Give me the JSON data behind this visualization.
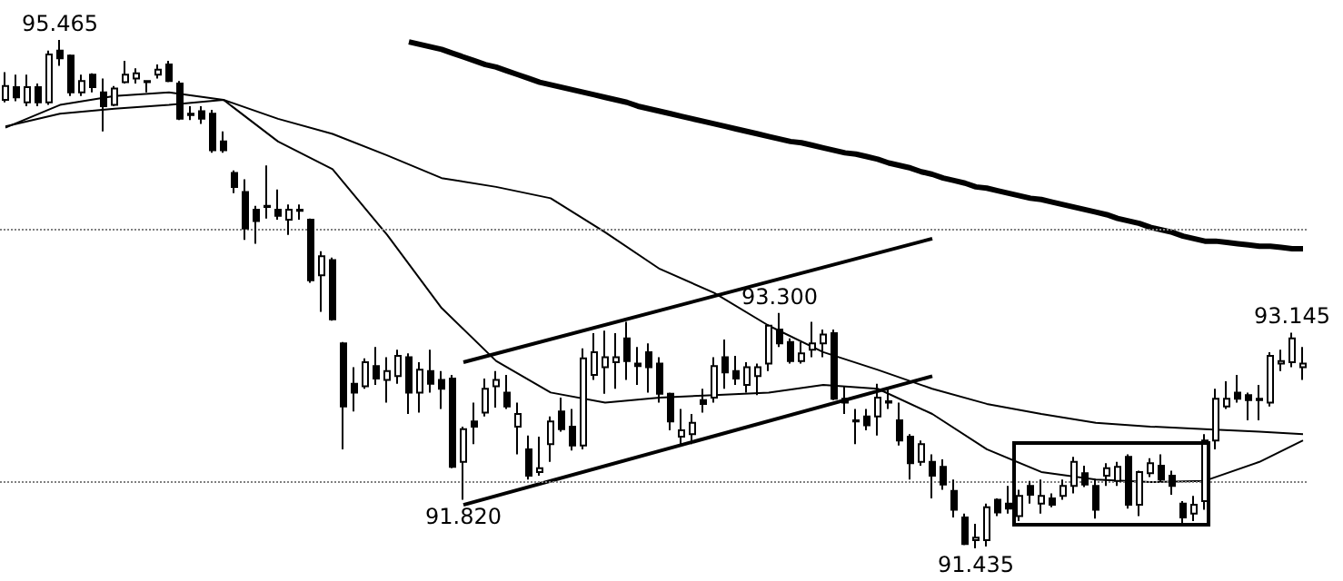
{
  "chart_data": {
    "type": "candlestick",
    "marker": "none",
    "line_style": "solid",
    "grid": false,
    "categories": [
      null,
      null,
      null,
      null,
      null,
      null,
      null,
      null,
      null,
      null,
      null,
      null,
      null,
      null,
      null,
      null,
      null,
      null,
      null,
      null,
      null,
      null,
      null,
      null,
      null,
      null,
      null,
      null,
      null,
      null,
      null,
      null,
      null,
      null,
      null,
      null,
      null,
      null,
      null,
      null,
      null,
      null,
      null,
      null,
      null,
      null,
      null,
      null,
      null,
      null,
      null,
      null,
      null,
      null,
      null,
      null,
      null,
      null,
      null,
      null,
      null,
      null,
      null,
      null,
      null,
      null,
      null,
      null,
      null,
      null,
      null,
      null,
      null,
      null,
      null,
      null,
      null,
      null,
      null,
      null,
      null,
      null,
      null,
      null,
      null,
      null,
      null,
      null,
      null,
      null,
      null,
      null,
      null,
      null,
      null,
      null,
      null,
      null,
      null,
      null,
      null,
      null,
      null,
      null,
      null,
      null,
      null,
      null,
      null,
      null,
      null,
      null,
      null,
      null,
      null,
      null,
      null,
      null,
      null,
      null
    ],
    "ref_lines": [
      {
        "axis": "y",
        "value": 93.97,
        "color": "#808080",
        "line_style": "dotted"
      },
      {
        "axis": "y",
        "value": 91.97,
        "color": "#808080",
        "line_style": "dotted"
      }
    ],
    "annotations": [
      {
        "text": "95.465",
        "y": 95.465
      },
      {
        "text": "93.300",
        "y": 93.3
      },
      {
        "text": "93.145",
        "y": 93.145
      },
      {
        "text": "91.820",
        "y": 91.82
      },
      {
        "text": "91.435",
        "y": 91.435
      }
    ],
    "series": [
      {
        "type": "candlestick",
        "color": "#000000",
        "ohlc": [
          [
            94.99,
            95.21,
            94.97,
            95.1
          ],
          [
            95.09,
            95.19,
            94.98,
            95.01
          ],
          [
            94.97,
            95.19,
            94.94,
            95.09
          ],
          [
            95.09,
            95.12,
            94.94,
            94.97
          ],
          [
            94.97,
            95.38,
            94.95,
            95.35
          ],
          [
            95.38,
            95.465,
            95.26,
            95.32
          ],
          [
            95.34,
            95.35,
            95.02,
            95.05
          ],
          [
            95.05,
            95.19,
            95.02,
            95.14
          ],
          [
            95.19,
            95.2,
            95.05,
            95.09
          ],
          [
            95.05,
            95.16,
            94.74,
            94.94
          ],
          [
            94.95,
            95.1,
            94.94,
            95.08
          ],
          [
            95.13,
            95.3,
            95.12,
            95.19
          ],
          [
            95.16,
            95.24,
            95.12,
            95.2
          ],
          [
            95.14,
            95.14,
            95.05,
            95.13
          ],
          [
            95.19,
            95.27,
            95.16,
            95.23
          ],
          [
            95.27,
            95.3,
            95.13,
            95.14
          ],
          [
            95.12,
            95.14,
            94.83,
            94.84
          ],
          [
            94.88,
            94.94,
            94.83,
            94.87
          ],
          [
            94.9,
            94.94,
            94.8,
            94.84
          ],
          [
            94.88,
            94.91,
            94.57,
            94.59
          ],
          [
            94.66,
            94.74,
            94.57,
            94.59
          ],
          [
            94.41,
            94.43,
            94.25,
            94.3
          ],
          [
            94.26,
            94.36,
            93.88,
            93.97
          ],
          [
            94.12,
            94.15,
            93.85,
            94.03
          ],
          [
            94.15,
            94.47,
            94.05,
            94.14
          ],
          [
            94.12,
            94.28,
            94.04,
            94.07
          ],
          [
            94.04,
            94.16,
            93.92,
            94.12
          ],
          [
            94.12,
            94.16,
            94.04,
            94.11
          ],
          [
            94.04,
            94.05,
            93.54,
            93.56
          ],
          [
            93.6,
            93.79,
            93.31,
            93.75
          ],
          [
            93.72,
            93.74,
            93.24,
            93.25
          ],
          [
            93.06,
            93.07,
            92.22,
            92.56
          ],
          [
            92.74,
            92.87,
            92.52,
            92.67
          ],
          [
            92.72,
            92.94,
            92.7,
            92.91
          ],
          [
            92.88,
            93.03,
            92.73,
            92.78
          ],
          [
            92.77,
            92.95,
            92.59,
            92.84
          ],
          [
            92.8,
            93.01,
            92.74,
            92.96
          ],
          [
            92.95,
            92.98,
            92.5,
            92.67
          ],
          [
            92.67,
            92.91,
            92.51,
            92.85
          ],
          [
            92.84,
            93.01,
            92.67,
            92.74
          ],
          [
            92.77,
            92.84,
            92.54,
            92.7
          ],
          [
            92.78,
            92.81,
            92.07,
            92.08
          ],
          [
            92.12,
            92.4,
            91.82,
            92.38
          ],
          [
            92.44,
            92.59,
            92.26,
            92.4
          ],
          [
            92.51,
            92.78,
            92.48,
            92.7
          ],
          [
            92.72,
            92.84,
            92.55,
            92.77
          ],
          [
            92.67,
            92.81,
            92.54,
            92.56
          ],
          [
            92.4,
            92.59,
            92.18,
            92.5
          ],
          [
            92.22,
            92.33,
            91.98,
            92.01
          ],
          [
            92.04,
            92.32,
            92.01,
            92.07
          ],
          [
            92.26,
            92.48,
            92.12,
            92.44
          ],
          [
            92.52,
            92.63,
            92.36,
            92.38
          ],
          [
            92.4,
            92.54,
            92.21,
            92.25
          ],
          [
            92.25,
            93.02,
            92.22,
            92.94
          ],
          [
            92.81,
            93.14,
            92.77,
            92.99
          ],
          [
            92.87,
            93.16,
            92.66,
            92.95
          ],
          [
            92.91,
            93.14,
            92.7,
            92.95
          ],
          [
            93.1,
            93.23,
            92.77,
            92.92
          ],
          [
            92.9,
            93.03,
            92.73,
            92.88
          ],
          [
            92.99,
            93.06,
            92.67,
            92.87
          ],
          [
            92.9,
            92.95,
            92.59,
            92.66
          ],
          [
            92.66,
            92.67,
            92.37,
            92.44
          ],
          [
            92.32,
            92.54,
            92.25,
            92.37
          ],
          [
            92.34,
            92.5,
            92.26,
            92.43
          ],
          [
            92.61,
            92.7,
            92.51,
            92.58
          ],
          [
            92.63,
            92.95,
            92.59,
            92.88
          ],
          [
            92.95,
            93.09,
            92.7,
            92.83
          ],
          [
            92.84,
            92.96,
            92.73,
            92.78
          ],
          [
            92.73,
            92.91,
            92.67,
            92.87
          ],
          [
            92.8,
            92.9,
            92.65,
            92.87
          ],
          [
            92.9,
            93.21,
            92.84,
            93.2
          ],
          [
            93.17,
            93.3,
            93.03,
            93.06
          ],
          [
            93.07,
            93.1,
            92.9,
            92.92
          ],
          [
            92.92,
            93.07,
            92.9,
            92.98
          ],
          [
            93.01,
            93.23,
            92.95,
            93.06
          ],
          [
            93.06,
            93.17,
            92.95,
            93.13
          ],
          [
            93.14,
            93.17,
            92.61,
            92.62
          ],
          [
            92.62,
            92.72,
            92.5,
            92.59
          ],
          [
            92.44,
            92.54,
            92.26,
            92.45
          ],
          [
            92.48,
            92.54,
            92.37,
            92.41
          ],
          [
            92.48,
            92.74,
            92.33,
            92.63
          ],
          [
            92.59,
            92.7,
            92.54,
            92.6
          ],
          [
            92.45,
            92.59,
            92.25,
            92.29
          ],
          [
            92.32,
            92.34,
            91.98,
            92.11
          ],
          [
            92.12,
            92.29,
            92.09,
            92.26
          ],
          [
            92.12,
            92.18,
            91.83,
            92.01
          ],
          [
            92.08,
            92.14,
            91.9,
            91.94
          ],
          [
            91.89,
            91.98,
            91.68,
            91.74
          ],
          [
            91.68,
            91.71,
            91.46,
            91.47
          ],
          [
            91.5,
            91.63,
            91.435,
            91.52
          ],
          [
            91.5,
            91.79,
            91.45,
            91.76
          ],
          [
            91.82,
            91.83,
            91.69,
            91.72
          ],
          [
            91.79,
            91.93,
            91.71,
            91.75
          ],
          [
            91.69,
            91.9,
            91.65,
            91.85
          ],
          [
            91.93,
            91.97,
            91.79,
            91.86
          ],
          [
            91.79,
            91.98,
            91.71,
            91.85
          ],
          [
            91.83,
            91.87,
            91.76,
            91.78
          ],
          [
            91.85,
            91.98,
            91.82,
            91.93
          ],
          [
            91.93,
            92.16,
            91.87,
            92.12
          ],
          [
            92.03,
            92.09,
            91.92,
            91.94
          ],
          [
            91.93,
            91.98,
            91.67,
            91.74
          ],
          [
            92.01,
            92.11,
            91.93,
            92.07
          ],
          [
            91.97,
            92.12,
            91.93,
            92.08
          ],
          [
            92.16,
            92.18,
            91.75,
            91.78
          ],
          [
            91.78,
            92.05,
            91.69,
            92.04
          ],
          [
            92.03,
            92.15,
            92.0,
            92.11
          ],
          [
            92.09,
            92.18,
            91.96,
            91.98
          ],
          [
            92.01,
            92.05,
            91.86,
            91.93
          ],
          [
            91.79,
            91.81,
            91.61,
            91.68
          ],
          [
            91.71,
            91.85,
            91.65,
            91.78
          ],
          [
            91.81,
            92.34,
            91.74,
            92.29
          ],
          [
            92.29,
            92.7,
            92.22,
            92.62
          ],
          [
            92.56,
            92.76,
            92.54,
            92.62
          ],
          [
            92.67,
            92.81,
            92.59,
            92.62
          ],
          [
            92.65,
            92.67,
            92.45,
            92.61
          ],
          [
            92.62,
            92.73,
            92.45,
            92.61
          ],
          [
            92.59,
            92.99,
            92.56,
            92.96
          ],
          [
            92.9,
            93.01,
            92.84,
            92.92
          ],
          [
            92.91,
            93.145,
            92.87,
            93.1
          ],
          [
            92.87,
            93.03,
            92.77,
            92.9
          ]
        ]
      },
      {
        "type": "line",
        "color": "#000000",
        "values": [
          null,
          null,
          null,
          null,
          null,
          null,
          null,
          null,
          null,
          null,
          null,
          null,
          null,
          null,
          null,
          null,
          null,
          null,
          null,
          null,
          null,
          null,
          null,
          null,
          null,
          null,
          null,
          null,
          null,
          null,
          null,
          null,
          null,
          null,
          null,
          null,
          null,
          95.45,
          95.43,
          95.41,
          95.39,
          95.36,
          95.33,
          95.3,
          95.27,
          95.25,
          95.22,
          95.19,
          95.16,
          95.13,
          95.11,
          95.09,
          95.07,
          95.05,
          95.03,
          95.01,
          94.99,
          94.97,
          94.94,
          94.92,
          94.9,
          94.88,
          94.86,
          94.84,
          94.82,
          94.8,
          94.78,
          94.76,
          94.74,
          94.72,
          94.7,
          94.68,
          94.66,
          94.65,
          94.63,
          94.61,
          94.59,
          94.57,
          94.56,
          94.54,
          94.52,
          94.49,
          94.47,
          94.45,
          94.42,
          94.4,
          94.37,
          94.35,
          94.33,
          94.3,
          94.29,
          94.27,
          94.25,
          94.23,
          94.21,
          94.2,
          94.18,
          94.16,
          94.14,
          94.12,
          94.1,
          94.08,
          94.05,
          94.03,
          94.01,
          93.98,
          93.96,
          93.94,
          93.91,
          93.89,
          93.87,
          93.87,
          93.86,
          93.85,
          93.84,
          93.83,
          93.83,
          93.82,
          93.81,
          93.81
        ]
      },
      {
        "type": "line",
        "color": "#000000",
        "values": [
          94.78,
          null,
          null,
          null,
          null,
          94.88,
          null,
          null,
          null,
          null,
          94.92,
          null,
          null,
          null,
          null,
          94.95,
          null,
          null,
          null,
          null,
          94.99,
          null,
          null,
          null,
          null,
          94.84,
          null,
          null,
          null,
          null,
          94.72,
          null,
          null,
          null,
          null,
          94.55,
          null,
          null,
          null,
          null,
          94.37,
          null,
          null,
          null,
          null,
          94.3,
          null,
          null,
          null,
          null,
          94.21,
          null,
          null,
          null,
          null,
          93.94,
          null,
          null,
          null,
          null,
          93.65,
          null,
          null,
          null,
          null,
          93.46,
          null,
          null,
          null,
          null,
          93.2,
          null,
          null,
          null,
          null,
          92.99,
          null,
          null,
          null,
          null,
          92.85,
          null,
          null,
          null,
          null,
          92.7,
          null,
          null,
          null,
          null,
          92.58,
          null,
          null,
          null,
          null,
          92.5,
          null,
          null,
          null,
          null,
          92.43,
          null,
          null,
          null,
          null,
          92.4,
          null,
          null,
          null,
          null,
          92.38,
          null,
          null,
          null,
          null,
          92.36,
          null,
          null,
          null,
          92.34
        ]
      },
      {
        "type": "line",
        "color": "#000000",
        "values": [
          94.77,
          null,
          null,
          null,
          null,
          94.95,
          null,
          null,
          null,
          null,
          95.02,
          null,
          null,
          null,
          null,
          95.05,
          null,
          null,
          null,
          null,
          94.99,
          null,
          null,
          null,
          null,
          94.66,
          null,
          null,
          null,
          null,
          94.44,
          null,
          null,
          null,
          null,
          93.92,
          null,
          null,
          null,
          null,
          93.34,
          null,
          null,
          null,
          null,
          92.92,
          null,
          null,
          null,
          null,
          92.67,
          null,
          null,
          null,
          null,
          92.59,
          null,
          null,
          null,
          null,
          92.63,
          null,
          null,
          null,
          null,
          92.65,
          null,
          null,
          null,
          null,
          92.67,
          null,
          null,
          null,
          null,
          92.73,
          null,
          null,
          null,
          null,
          92.7,
          null,
          null,
          null,
          null,
          92.5,
          null,
          null,
          null,
          null,
          92.22,
          null,
          null,
          null,
          null,
          92.04,
          null,
          null,
          null,
          null,
          91.98,
          null,
          null,
          null,
          null,
          91.96,
          null,
          null,
          null,
          null,
          91.97,
          null,
          null,
          null,
          null,
          92.12,
          null,
          null,
          null,
          92.29
        ]
      },
      {
        "type": "line",
        "color": "#000000",
        "values": [
          null,
          null,
          null,
          null,
          null,
          null,
          null,
          null,
          null,
          null,
          null,
          null,
          null,
          null,
          null,
          null,
          null,
          null,
          null,
          null,
          null,
          null,
          null,
          null,
          null,
          null,
          null,
          null,
          null,
          null,
          null,
          null,
          null,
          null,
          null,
          null,
          null,
          null,
          null,
          null,
          null,
          null,
          92.91,
          null,
          null,
          null,
          null,
          null,
          null,
          null,
          null,
          null,
          null,
          null,
          null,
          null,
          null,
          null,
          null,
          null,
          null,
          null,
          null,
          null,
          null,
          null,
          null,
          null,
          null,
          null,
          null,
          null,
          null,
          null,
          null,
          null,
          null,
          null,
          null,
          null,
          null,
          null,
          null,
          null,
          null,
          93.89,
          null,
          null,
          null,
          null,
          null,
          null,
          null,
          null,
          null,
          null,
          null,
          null,
          null,
          null,
          null,
          null,
          null,
          null,
          null,
          null,
          null,
          null,
          null,
          null,
          null,
          null,
          null,
          null,
          null,
          null,
          null,
          null,
          null,
          null
        ]
      },
      {
        "type": "line",
        "color": "#000000",
        "values": [
          null,
          null,
          null,
          null,
          null,
          null,
          null,
          null,
          null,
          null,
          null,
          null,
          null,
          null,
          null,
          null,
          null,
          null,
          null,
          null,
          null,
          null,
          null,
          null,
          null,
          null,
          null,
          null,
          null,
          null,
          null,
          null,
          null,
          null,
          null,
          null,
          null,
          null,
          null,
          null,
          null,
          null,
          91.78,
          null,
          null,
          null,
          null,
          null,
          null,
          null,
          null,
          null,
          null,
          null,
          null,
          null,
          null,
          null,
          null,
          null,
          null,
          null,
          null,
          null,
          null,
          null,
          null,
          null,
          null,
          null,
          null,
          null,
          null,
          null,
          null,
          null,
          null,
          null,
          null,
          null,
          null,
          null,
          null,
          null,
          null,
          92.8,
          null,
          null,
          null,
          null,
          null,
          null,
          null,
          null,
          null,
          null,
          null,
          null,
          null,
          null,
          null,
          null,
          null,
          null,
          null,
          null,
          null,
          null,
          null,
          null,
          null,
          null,
          null,
          null,
          null,
          null,
          null,
          null,
          null,
          null
        ]
      }
    ]
  }
}
